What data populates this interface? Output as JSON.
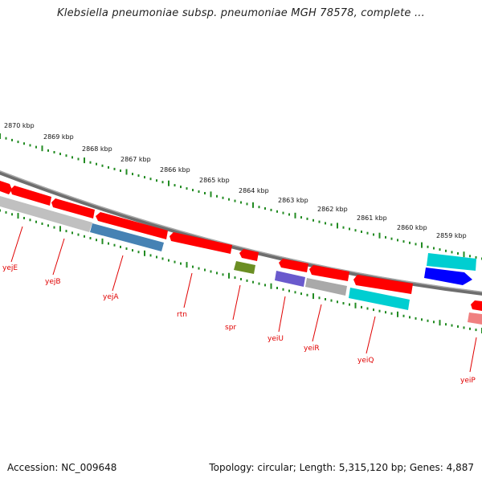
{
  "header": {
    "title": "Klebsiella pneumoniae subsp. pneumoniae MGH 78578, complete ..."
  },
  "footer": {
    "accession": "Accession: NC_009648",
    "summary": "Topology: circular; Length: 5,315,120 bp; Genes: 4,887"
  },
  "scale": {
    "labels": [
      "2870 kbp",
      "2869 kbp",
      "2868 kbp",
      "2867 kbp",
      "2866 kbp",
      "2865 kbp",
      "2864 kbp",
      "2863 kbp",
      "2862 kbp",
      "2861 kbp",
      "2860 kbp",
      "2859 kbp"
    ],
    "tick_color": "#228b22"
  },
  "genes": [
    {
      "name": "yejE",
      "strand": "reverse",
      "color": "#ff0000"
    },
    {
      "name": "yejB",
      "strand": "reverse",
      "color": "#ff0000"
    },
    {
      "name": "yejA",
      "strand": "reverse",
      "color": "#ff0000"
    },
    {
      "name": "rtn",
      "strand": "reverse",
      "color": "#ff0000"
    },
    {
      "name": "spr",
      "strand": "reverse",
      "color": "#ff0000"
    },
    {
      "name": "yeiU",
      "strand": "reverse",
      "color": "#ff0000"
    },
    {
      "name": "yeiR",
      "strand": "reverse",
      "color": "#ff0000"
    },
    {
      "name": "yeiQ",
      "strand": "reverse",
      "color": "#ff0000"
    },
    {
      "name": "yeiP",
      "strand": "reverse",
      "color": "#ff0000"
    }
  ],
  "features": [
    {
      "color": "#c0c0c0"
    },
    {
      "color": "#4682b4"
    },
    {
      "color": "#6b8e23"
    },
    {
      "color": "#6a5acd"
    },
    {
      "color": "#a9a9a9"
    },
    {
      "color": "#00ced1"
    },
    {
      "color": "#00ced1"
    },
    {
      "color": "#0000ff"
    },
    {
      "color": "#f08080"
    }
  ],
  "colors": {
    "backbone": "#808080",
    "cds": "#ff0000",
    "gene_label": "#e00000"
  }
}
